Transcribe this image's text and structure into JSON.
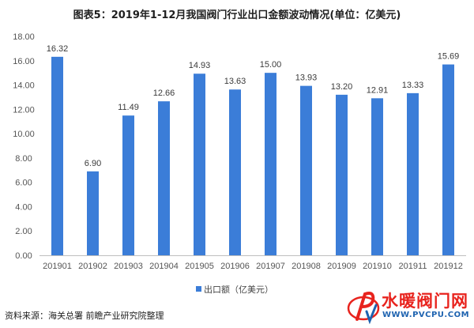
{
  "title": "图表5：2019年1-12月我国阀门行业出口金额波动情况(单位：亿美元)",
  "chart_data": {
    "type": "bar",
    "title": "图表5：2019年1-12月我国阀门行业出口金额波动情况(单位：亿美元)",
    "categories": [
      "201901",
      "201902",
      "201903",
      "201904",
      "201905",
      "201906",
      "201907",
      "201908",
      "201909",
      "201910",
      "201911",
      "201912"
    ],
    "series": [
      {
        "name": "出口额（亿美元）",
        "values": [
          16.32,
          6.9,
          11.49,
          12.66,
          14.93,
          13.63,
          15.0,
          13.93,
          13.2,
          12.91,
          13.33,
          15.69
        ]
      }
    ],
    "value_labels": [
      "16.32",
      "6.90",
      "11.49",
      "12.66",
      "14.93",
      "13.63",
      "15.00",
      "13.93",
      "13.20",
      "12.91",
      "13.33",
      "15.69"
    ],
    "y_ticks": [
      "0.00",
      "2.00",
      "4.00",
      "6.00",
      "8.00",
      "10.00",
      "12.00",
      "14.00",
      "16.00",
      "18.00"
    ],
    "ylim": [
      0,
      18
    ],
    "xlabel": "",
    "ylabel": "",
    "legend": "bottom-center",
    "grid": false,
    "bar_color": "#3b7dd8"
  },
  "source": "资料来源：海关总署 前瞻产业研究院整理",
  "logo": {
    "main_text": "水暖阀门网",
    "sub_text": "WWW.PVCPU.COM",
    "mark_color": "#e8231d",
    "sub_color": "#1e63b0"
  }
}
